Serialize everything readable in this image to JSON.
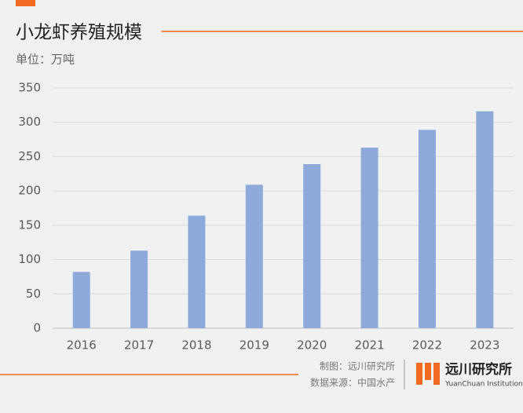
{
  "chart_data": {
    "type": "bar",
    "title": "小龙虾养殖规模",
    "subtitle": "单位：万吨",
    "categories": [
      "2016",
      "2017",
      "2018",
      "2019",
      "2020",
      "2021",
      "2022",
      "2023"
    ],
    "values": [
      82,
      113,
      164,
      209,
      239,
      263,
      289,
      316
    ],
    "color": "#8eaadb",
    "ylim": [
      0,
      350
    ],
    "yticks": [
      0,
      50,
      100,
      150,
      200,
      250,
      300,
      350
    ],
    "grid": true
  },
  "footer": {
    "credit": "制图：远川研究所",
    "source": "数据来源：中国水产",
    "brand": "远川研究所",
    "brand_en": "YuanChuan Institution"
  }
}
